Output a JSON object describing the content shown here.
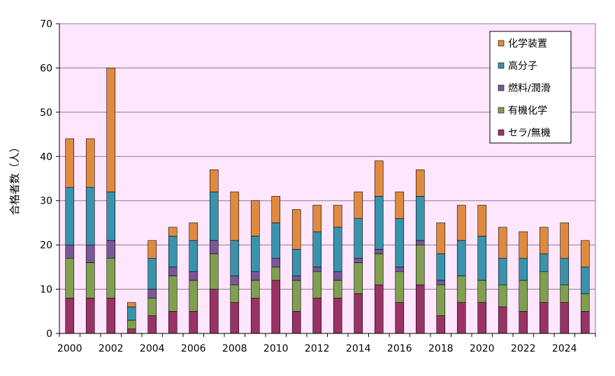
{
  "chart_data": {
    "type": "bar",
    "stacked": true,
    "title": "",
    "xlabel": "",
    "ylabel": "合格者数（人）",
    "ylim": [
      0,
      70
    ],
    "yticks": [
      0,
      10,
      20,
      30,
      40,
      50,
      60,
      70
    ],
    "grid": true,
    "legend_position": "top-right",
    "categories": [
      2000,
      2001,
      2002,
      2003,
      2004,
      2005,
      2006,
      2007,
      2008,
      2009,
      2010,
      2011,
      2012,
      2013,
      2014,
      2015,
      2016,
      2017,
      2018,
      2019,
      2020,
      2021,
      2022,
      2023,
      2024,
      2025
    ],
    "x_tick_labels": [
      "2000",
      "2002",
      "2004",
      "2006",
      "2008",
      "2010",
      "2012",
      "2014",
      "2016",
      "2018",
      "2020",
      "2022",
      "2024"
    ],
    "series": [
      {
        "name": "セラ/無機",
        "color": "#993366",
        "values": [
          8,
          8,
          8,
          1,
          4,
          5,
          5,
          10,
          7,
          8,
          12,
          5,
          8,
          8,
          9,
          11,
          7,
          11,
          4,
          7,
          7,
          6,
          5,
          7,
          7,
          5
        ]
      },
      {
        "name": "有機化学",
        "color": "#80A050",
        "values": [
          9,
          8,
          9,
          2,
          4,
          8,
          7,
          8,
          4,
          4,
          3,
          7,
          6,
          4,
          7,
          7,
          7,
          9,
          7,
          6,
          5,
          5,
          7,
          7,
          4,
          4
        ]
      },
      {
        "name": "燃料/潤滑",
        "color": "#7A5898",
        "values": [
          3,
          4,
          4,
          0,
          2,
          2,
          2,
          3,
          2,
          2,
          2,
          1,
          1,
          2,
          1,
          1,
          1,
          1,
          1,
          0,
          0,
          0,
          0,
          0,
          0,
          0
        ]
      },
      {
        "name": "高分子",
        "color": "#3A93AD",
        "values": [
          13,
          13,
          11,
          3,
          7,
          7,
          7,
          11,
          8,
          8,
          8,
          6,
          8,
          10,
          9,
          12,
          11,
          10,
          6,
          8,
          10,
          6,
          5,
          4,
          6,
          6
        ]
      },
      {
        "name": "化学装置",
        "color": "#E08A40",
        "values": [
          11,
          11,
          28,
          1,
          4,
          2,
          4,
          5,
          11,
          8,
          6,
          9,
          6,
          5,
          6,
          8,
          6,
          6,
          7,
          8,
          7,
          7,
          6,
          6,
          8,
          6
        ]
      }
    ],
    "legend_order": [
      "化学装置",
      "高分子",
      "燃料/潤滑",
      "有機化学",
      "セラ/無機"
    ]
  },
  "colors": {
    "plot_background": "#FFE6FF",
    "gridline": "#808080",
    "axis": "#000000"
  }
}
